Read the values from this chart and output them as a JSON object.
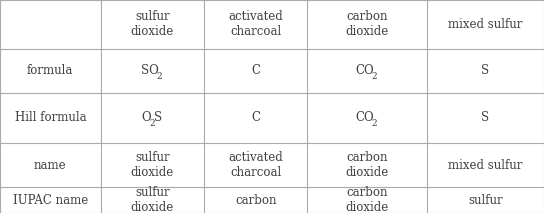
{
  "col_headers": [
    "sulfur\ndioxide",
    "activated\ncharcoal",
    "carbon\ndioxide",
    "mixed sulfur"
  ],
  "row_headers": [
    "formula",
    "Hill formula",
    "name",
    "IUPAC name"
  ],
  "cells": [
    [
      [
        "SO",
        "2",
        ""
      ],
      [
        "C",
        "",
        ""
      ],
      [
        "CO",
        "2",
        ""
      ],
      [
        "S",
        "",
        ""
      ]
    ],
    [
      [
        "O",
        "2",
        "S"
      ],
      [
        "C",
        "",
        ""
      ],
      [
        "CO",
        "2",
        ""
      ],
      [
        "S",
        "",
        ""
      ]
    ],
    [
      [
        "sulfur\ndioxide",
        "",
        ""
      ],
      [
        "activated\ncharcoal",
        "",
        ""
      ],
      [
        "carbon\ndioxide",
        "",
        ""
      ],
      [
        "mixed sulfur",
        "",
        ""
      ]
    ],
    [
      [
        "sulfur\ndioxide",
        "",
        ""
      ],
      [
        "carbon",
        "",
        ""
      ],
      [
        "carbon\ndioxide",
        "",
        ""
      ],
      [
        "sulfur",
        "",
        ""
      ]
    ]
  ],
  "background_color": "#ffffff",
  "line_color": "#aaaaaa",
  "text_color": "#404040",
  "font_size": 8.5,
  "header_font_size": 8.5
}
